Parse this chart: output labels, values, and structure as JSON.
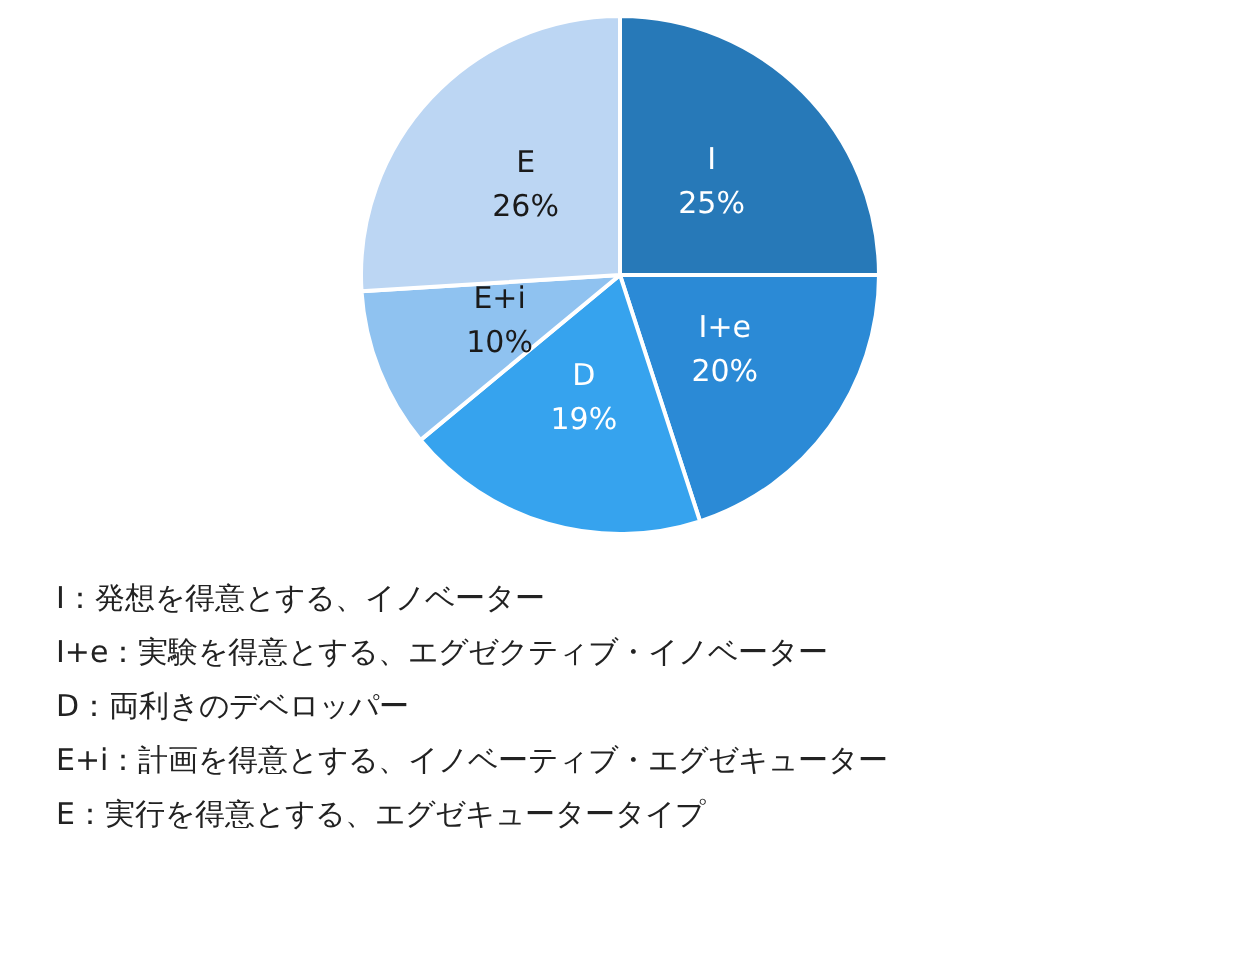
{
  "chart_data": {
    "type": "pie",
    "categories": [
      "I",
      "I+e",
      "D",
      "E+i",
      "E"
    ],
    "values": [
      25,
      20,
      19,
      10,
      26
    ],
    "value_labels": [
      "25%",
      "20%",
      "19%",
      "10%",
      "26%"
    ],
    "colors": [
      "#2779b8",
      "#2b8ad6",
      "#36a3ee",
      "#8fc2f0",
      "#bcd6f3"
    ],
    "legend": false,
    "annotations": [
      "I：発想を得意とする、イノベーター",
      "I+e：実験を得意とする、エグゼクティブ・イノベーター",
      "D：両利きのデベロッパー",
      "E+i：計画を得意とする、イノベーティブ・エグゼキューター",
      "E：実行を得意とする、エグゼキュータータイプ"
    ]
  }
}
